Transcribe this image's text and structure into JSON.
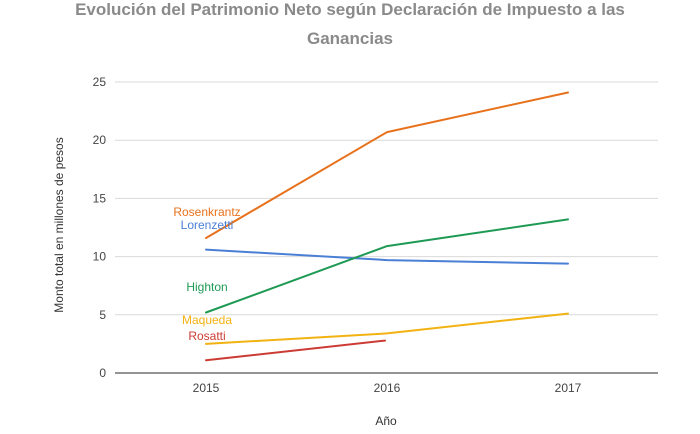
{
  "chart_data": {
    "type": "line",
    "title_lines": [
      "Evolución del Patrimonio Neto según Declaración de Impuesto a las",
      "Ganancias"
    ],
    "xlabel": "Año",
    "ylabel": "Monto total en millones de pesos",
    "x": [
      "2015",
      "2016",
      "2017"
    ],
    "y_ticks": [
      0,
      5,
      10,
      15,
      20,
      25
    ],
    "ylim": [
      0,
      25
    ],
    "grid": true,
    "legend": "inline labels at series start",
    "series": [
      {
        "name": "Rosenkrantz",
        "color": "#e8711c",
        "values": [
          11.6,
          20.7,
          24.1
        ]
      },
      {
        "name": "Lorenzetti",
        "color": "#4a7fd6",
        "values": [
          10.6,
          9.7,
          9.4
        ]
      },
      {
        "name": "Highton",
        "color": "#1e9a55",
        "values": [
          5.2,
          10.9,
          13.2
        ]
      },
      {
        "name": "Maqueda",
        "color": "#f2b211",
        "values": [
          2.5,
          3.4,
          5.1
        ]
      },
      {
        "name": "Rosatti",
        "color": "#cc3b33",
        "values": [
          1.1,
          2.8,
          null
        ]
      }
    ]
  }
}
